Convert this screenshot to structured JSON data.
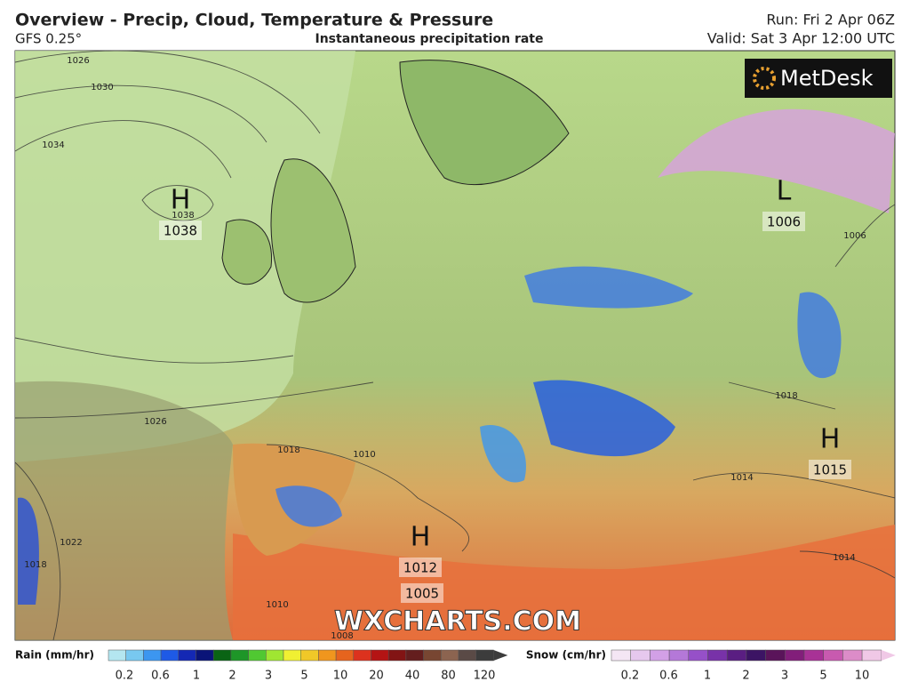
{
  "header": {
    "title": "Overview - Precip, Cloud, Temperature & Pressure",
    "model": "GFS 0.25°",
    "subtitle": "Instantaneous precipitation rate",
    "run": "Run: Fri 2 Apr 06Z",
    "valid": "Valid: Sat 3 Apr 12:00 UTC"
  },
  "map": {
    "logo": "MetDesk",
    "watermark": "WXCHARTS.COM",
    "pressure_centers": [
      {
        "label": "H",
        "value": 1038
      },
      {
        "label": "L",
        "value": 1006
      },
      {
        "label": "H",
        "value": 1015
      },
      {
        "label": "H",
        "value": 1012
      }
    ],
    "extra_pressure_label": 1005,
    "isobar_labels": [
      1026,
      1030,
      1034,
      1038,
      1026,
      1022,
      1018,
      1018,
      1010,
      1010,
      1008,
      1006,
      1014,
      1014,
      1018
    ]
  },
  "legend": {
    "rain": {
      "label": "Rain (mm/hr)",
      "ticks": [
        0.2,
        0.6,
        1,
        2,
        3,
        5,
        10,
        20,
        40,
        80,
        120
      ],
      "colors": [
        "#b4e6f0",
        "#78c8f0",
        "#3c96f0",
        "#1e5ae6",
        "#1428b4",
        "#0a1478",
        "#0a6414",
        "#1e9628",
        "#50c832",
        "#a0e632",
        "#f0f032",
        "#f0c828",
        "#f0961e",
        "#e6641e",
        "#dc321e",
        "#b41414",
        "#821414",
        "#641e1e",
        "#784632",
        "#8c6450",
        "#5a4a46",
        "#3c3c3c"
      ]
    },
    "snow": {
      "label": "Snow (cm/hr)",
      "ticks": [
        0.2,
        0.6,
        1,
        2,
        3,
        5,
        10
      ],
      "colors": [
        "#f4e6f4",
        "#e6c8ee",
        "#d2a0e6",
        "#b478d8",
        "#9650c8",
        "#7832a8",
        "#5a1e82",
        "#3c1464",
        "#5a145a",
        "#821e7a",
        "#a83296",
        "#c85aaf",
        "#dc8cc8",
        "#f0c8e6"
      ]
    }
  }
}
